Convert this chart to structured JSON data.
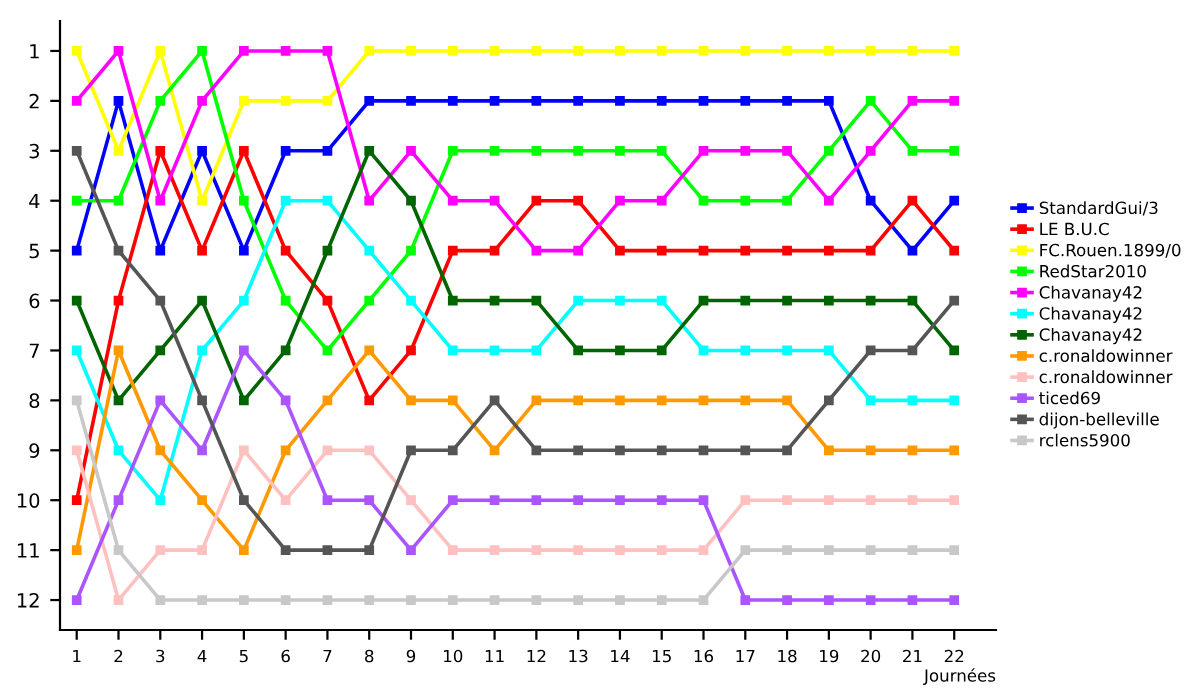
{
  "chart_data": {
    "type": "line",
    "xlabel": "Journées",
    "x": [
      1,
      2,
      3,
      4,
      5,
      6,
      7,
      8,
      9,
      10,
      11,
      12,
      13,
      14,
      15,
      16,
      17,
      18,
      19,
      20,
      21,
      22
    ],
    "xlim": [
      0.6,
      23
    ],
    "xticks": [
      1,
      2,
      3,
      4,
      5,
      6,
      7,
      8,
      9,
      10,
      11,
      12,
      13,
      14,
      15,
      16,
      17,
      18,
      19,
      20,
      21,
      22
    ],
    "ylim": [
      12.6,
      0.4
    ],
    "yticks": [
      1,
      2,
      3,
      4,
      5,
      6,
      7,
      8,
      9,
      10,
      11,
      12
    ],
    "grid": false,
    "legend": "right",
    "marker": "square",
    "line_style": "solid",
    "series": [
      {
        "name": "StandardGui/3",
        "color": "#0000ff",
        "values": [
          5,
          2,
          5,
          3,
          5,
          3,
          3,
          2,
          2,
          2,
          2,
          2,
          2,
          2,
          2,
          2,
          2,
          2,
          2,
          4,
          5,
          4
        ]
      },
      {
        "name": "LE B.U.C",
        "color": "#ff0000",
        "values": [
          10,
          6,
          3,
          5,
          3,
          5,
          6,
          8,
          7,
          5,
          5,
          4,
          4,
          5,
          5,
          5,
          5,
          5,
          5,
          5,
          4,
          5
        ]
      },
      {
        "name": "FC.Rouen.1899/0",
        "color": "#ffff00",
        "values": [
          1,
          3,
          1,
          4,
          2,
          2,
          2,
          1,
          1,
          1,
          1,
          1,
          1,
          1,
          1,
          1,
          1,
          1,
          1,
          1,
          1,
          1
        ]
      },
      {
        "name": "RedStar2010",
        "color": "#00ff00",
        "values": [
          4,
          4,
          2,
          1,
          4,
          6,
          7,
          6,
          5,
          3,
          3,
          3,
          3,
          3,
          3,
          4,
          4,
          4,
          3,
          2,
          3,
          3
        ]
      },
      {
        "name": "Chavanay42",
        "color": "#ff00ff",
        "values": [
          2,
          1,
          4,
          2,
          1,
          1,
          1,
          4,
          3,
          4,
          4,
          5,
          5,
          4,
          4,
          3,
          3,
          3,
          4,
          3,
          2,
          2
        ]
      },
      {
        "name": "Chavanay42",
        "color": "#00ffff",
        "values": [
          7,
          9,
          10,
          7,
          6,
          4,
          4,
          5,
          6,
          7,
          7,
          7,
          6,
          6,
          6,
          7,
          7,
          7,
          7,
          8,
          8,
          8
        ]
      },
      {
        "name": "Chavanay42",
        "color": "#006400",
        "values": [
          6,
          8,
          7,
          6,
          8,
          7,
          5,
          3,
          4,
          6,
          6,
          6,
          7,
          7,
          7,
          6,
          6,
          6,
          6,
          6,
          6,
          7
        ]
      },
      {
        "name": "c.ronaldowinner",
        "color": "#ff9900",
        "values": [
          11,
          7,
          9,
          10,
          11,
          9,
          8,
          7,
          8,
          8,
          9,
          8,
          8,
          8,
          8,
          8,
          8,
          8,
          9,
          9,
          9,
          9
        ]
      },
      {
        "name": "c.ronaldowinner",
        "color": "#ffc0c0",
        "values": [
          9,
          12,
          11,
          11,
          9,
          10,
          9,
          9,
          10,
          11,
          11,
          11,
          11,
          11,
          11,
          11,
          10,
          10,
          10,
          10,
          10,
          10
        ]
      },
      {
        "name": "ticed69",
        "color": "#aa55ff",
        "values": [
          12,
          10,
          8,
          9,
          7,
          8,
          10,
          10,
          11,
          10,
          10,
          10,
          10,
          10,
          10,
          10,
          12,
          12,
          12,
          12,
          12,
          12
        ]
      },
      {
        "name": "dijon-belleville",
        "color": "#555555",
        "values": [
          3,
          5,
          6,
          8,
          10,
          11,
          11,
          11,
          9,
          9,
          8,
          9,
          9,
          9,
          9,
          9,
          9,
          9,
          8,
          7,
          7,
          6
        ]
      },
      {
        "name": "rclens5900",
        "color": "#c8c8c8",
        "values": [
          8,
          11,
          12,
          12,
          12,
          12,
          12,
          12,
          12,
          12,
          12,
          12,
          12,
          12,
          12,
          12,
          11,
          11,
          11,
          11,
          11,
          11
        ]
      }
    ]
  }
}
